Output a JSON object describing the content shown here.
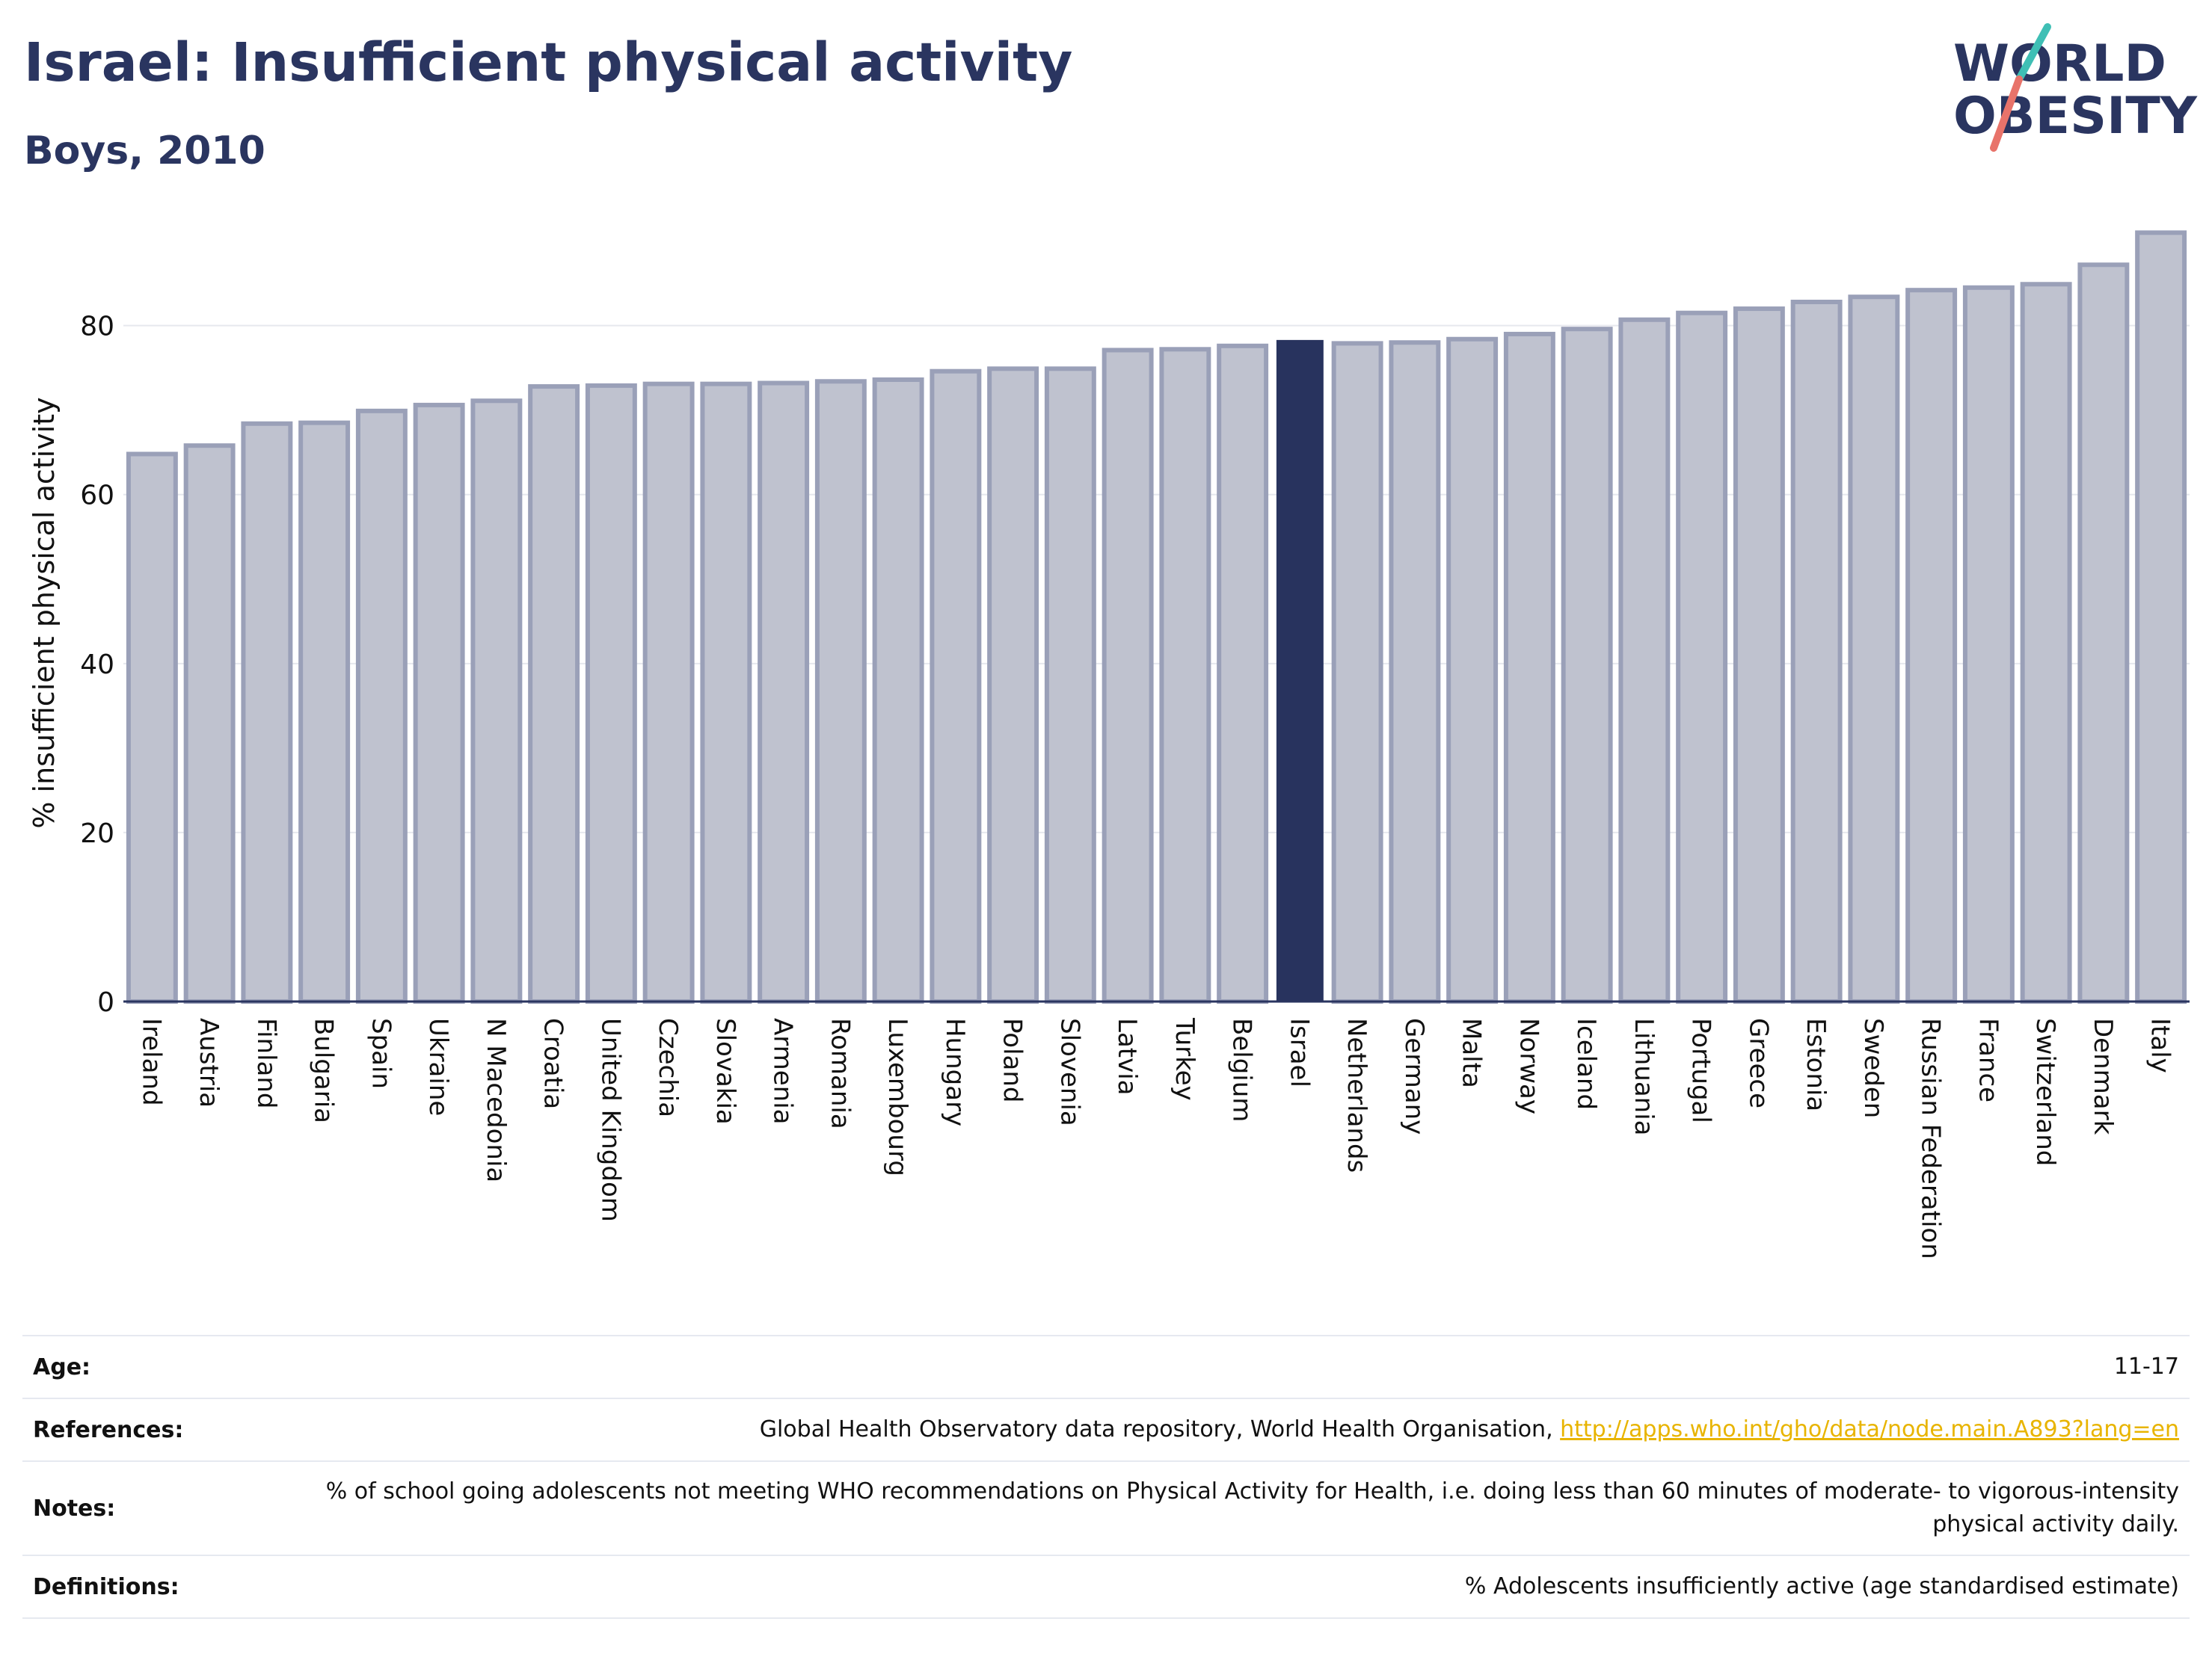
{
  "header": {
    "title": "Israel: Insufficient physical activity",
    "subtitle": "Boys, 2010"
  },
  "logo": {
    "line1": "WORLD",
    "line2": "OBESITY"
  },
  "colors": {
    "brand_navy": "#2a3560",
    "bar_fill": "#bfc2cf",
    "bar_stroke": "#9aa0b8",
    "highlight": "#28335e",
    "link": "#e8b400",
    "logo_teal": "#3fbfb5",
    "logo_coral": "#e8736a"
  },
  "chart_data": {
    "type": "bar",
    "ylabel": "% insufficient physical activity",
    "xlabel": "",
    "ylim": [
      0,
      92
    ],
    "yticks": [
      0,
      20,
      40,
      60,
      80
    ],
    "grid": true,
    "highlight": "Israel",
    "categories": [
      "Ireland",
      "Austria",
      "Finland",
      "Bulgaria",
      "Spain",
      "Ukraine",
      "N Macedonia",
      "Croatia",
      "United Kingdom",
      "Czechia",
      "Slovakia",
      "Armenia",
      "Romania",
      "Luxembourg",
      "Hungary",
      "Poland",
      "Slovenia",
      "Latvia",
      "Turkey",
      "Belgium",
      "Israel",
      "Netherlands",
      "Germany",
      "Malta",
      "Norway",
      "Iceland",
      "Lithuania",
      "Portugal",
      "Greece",
      "Estonia",
      "Sweden",
      "Russian Federation",
      "France",
      "Switzerland",
      "Denmark",
      "Italy"
    ],
    "values": [
      64.8,
      65.8,
      68.4,
      68.5,
      69.9,
      70.6,
      71.1,
      72.8,
      72.9,
      73.1,
      73.1,
      73.2,
      73.4,
      73.6,
      74.6,
      74.9,
      74.9,
      77.1,
      77.2,
      77.6,
      78.3,
      77.9,
      78.0,
      78.4,
      79.0,
      79.6,
      80.7,
      81.5,
      82.0,
      82.8,
      83.4,
      84.2,
      84.5,
      84.9,
      87.2,
      91.0
    ]
  },
  "info": [
    {
      "label": "Age:",
      "value": "11-17"
    },
    {
      "label": "References:",
      "value": "Global Health Observatory data repository, World Health Organisation, ",
      "link": "http://apps.who.int/gho/data/node.main.A893?lang=en"
    },
    {
      "label": "Notes:",
      "value": "% of school going adolescents not meeting WHO recommendations on Physical Activity for Health, i.e. doing less than 60 minutes of moderate- to vigorous-intensity physical activity daily."
    },
    {
      "label": "Definitions:",
      "value": "% Adolescents insufficiently active (age standardised estimate)"
    }
  ]
}
